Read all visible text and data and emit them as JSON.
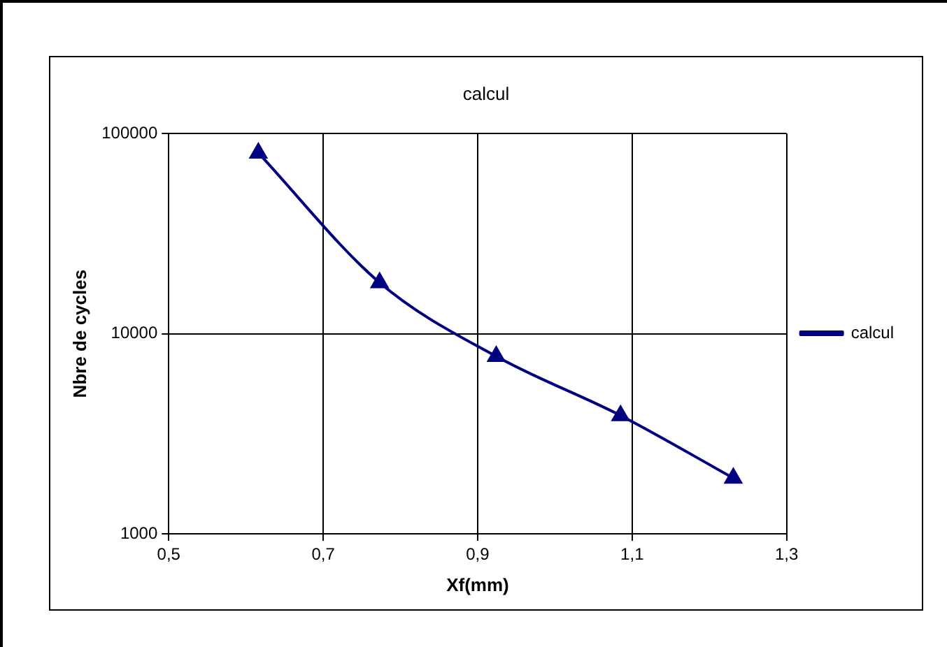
{
  "chart_data": {
    "type": "line",
    "title": "calcul",
    "xlabel": "Xf(mm)",
    "ylabel": "Nbre de cycles",
    "x": [
      0.616,
      0.773,
      0.924,
      1.085,
      1.231
    ],
    "series": [
      {
        "name": "calcul",
        "color": "#000080",
        "values": [
          80000,
          18000,
          7700,
          3900,
          1900
        ]
      }
    ],
    "xlim": [
      0.5,
      1.3
    ],
    "xticks": [
      {
        "value": 0.5,
        "label": "0,5"
      },
      {
        "value": 0.7,
        "label": "0,7"
      },
      {
        "value": 0.9,
        "label": "0,9"
      },
      {
        "value": 1.1,
        "label": "1,1"
      },
      {
        "value": 1.3,
        "label": "1,3"
      }
    ],
    "ylim": [
      1000,
      100000
    ],
    "yticks": [
      1000,
      10000,
      100000
    ],
    "log": "y",
    "grid": true,
    "legend": "right",
    "marker": "triangle",
    "line_style": "solid"
  }
}
